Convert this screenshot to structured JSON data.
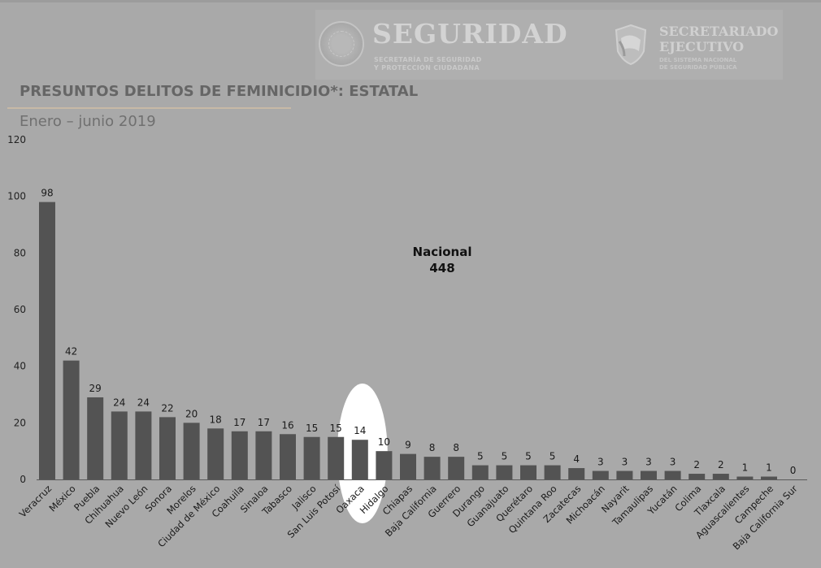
{
  "header": {
    "seguridad_title": "SEGURIDAD",
    "seguridad_sub1": "SECRETARÍA DE SEGURIDAD",
    "seguridad_sub2": "Y PROTECCIÓN CIUDADANA",
    "sesnsp_title1": "SECRETARIADO",
    "sesnsp_title2": "EJECUTIVO",
    "sesnsp_sub1": "DEL SISTEMA NACIONAL",
    "sesnsp_sub2": "DE SEGURIDAD PÚBLICA"
  },
  "colors": {
    "bar": "#535353",
    "highlight": "#ffffff",
    "background": "#a9a9a9"
  },
  "chart_data": {
    "type": "bar",
    "title": "PRESUNTOS DELITOS DE FEMINICIDIO*: ESTATAL",
    "subtitle": "Enero – junio 2019",
    "annotation_label": "Nacional",
    "annotation_value": "448",
    "highlighted_category": "Oaxaca",
    "ylim": [
      0,
      120
    ],
    "yticks": [
      0,
      20,
      40,
      60,
      80,
      100,
      120
    ],
    "grid": false,
    "categories": [
      "Veracruz",
      "México",
      "Puebla",
      "Chihuahua",
      "Nuevo León",
      "Sonora",
      "Morelos",
      "Ciudad de México",
      "Coahuila",
      "Sinaloa",
      "Tabasco",
      "Jalisco",
      "San Luis Potosí",
      "Oaxaca",
      "Hidalgo",
      "Chiapas",
      "Baja California",
      "Guerrero",
      "Durango",
      "Guanajuato",
      "Querétaro",
      "Quintana Roo",
      "Zacatecas",
      "Michoacán",
      "Nayarit",
      "Tamaulipas",
      "Yucatán",
      "Colima",
      "Tlaxcala",
      "Aguascalientes",
      "Campeche",
      "Baja California Sur"
    ],
    "values": [
      98,
      42,
      29,
      24,
      24,
      22,
      20,
      18,
      17,
      17,
      16,
      15,
      15,
      14,
      10,
      9,
      8,
      8,
      5,
      5,
      5,
      5,
      4,
      3,
      3,
      3,
      3,
      2,
      2,
      1,
      1,
      0
    ]
  }
}
